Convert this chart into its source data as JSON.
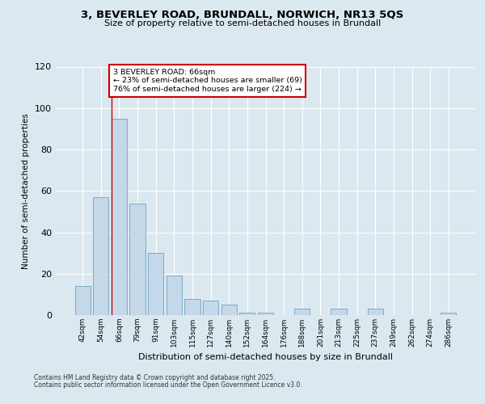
{
  "title1": "3, BEVERLEY ROAD, BRUNDALL, NORWICH, NR13 5QS",
  "title2": "Size of property relative to semi-detached houses in Brundall",
  "xlabel": "Distribution of semi-detached houses by size in Brundall",
  "ylabel": "Number of semi-detached properties",
  "categories": [
    "42sqm",
    "54sqm",
    "66sqm",
    "79sqm",
    "91sqm",
    "103sqm",
    "115sqm",
    "127sqm",
    "140sqm",
    "152sqm",
    "164sqm",
    "176sqm",
    "188sqm",
    "201sqm",
    "213sqm",
    "225sqm",
    "237sqm",
    "249sqm",
    "262sqm",
    "274sqm",
    "286sqm"
  ],
  "values": [
    14,
    57,
    95,
    54,
    30,
    19,
    8,
    7,
    5,
    1,
    1,
    0,
    3,
    0,
    3,
    0,
    3,
    0,
    0,
    0,
    1
  ],
  "bar_color": "#c5d8ea",
  "bar_edge_color": "#7aaac8",
  "property_line_x": 2,
  "annotation_title": "3 BEVERLEY ROAD: 66sqm",
  "annotation_line1": "← 23% of semi-detached houses are smaller (69)",
  "annotation_line2": "76% of semi-detached houses are larger (224) →",
  "annotation_box_color": "#ffffff",
  "annotation_box_edge_color": "#cc0000",
  "line_color": "#cc0000",
  "ylim": [
    0,
    120
  ],
  "yticks": [
    0,
    20,
    40,
    60,
    80,
    100,
    120
  ],
  "footer1": "Contains HM Land Registry data © Crown copyright and database right 2025.",
  "footer2": "Contains public sector information licensed under the Open Government Licence v3.0.",
  "bg_color": "#dce8f0",
  "plot_bg_color": "#dce8f0"
}
